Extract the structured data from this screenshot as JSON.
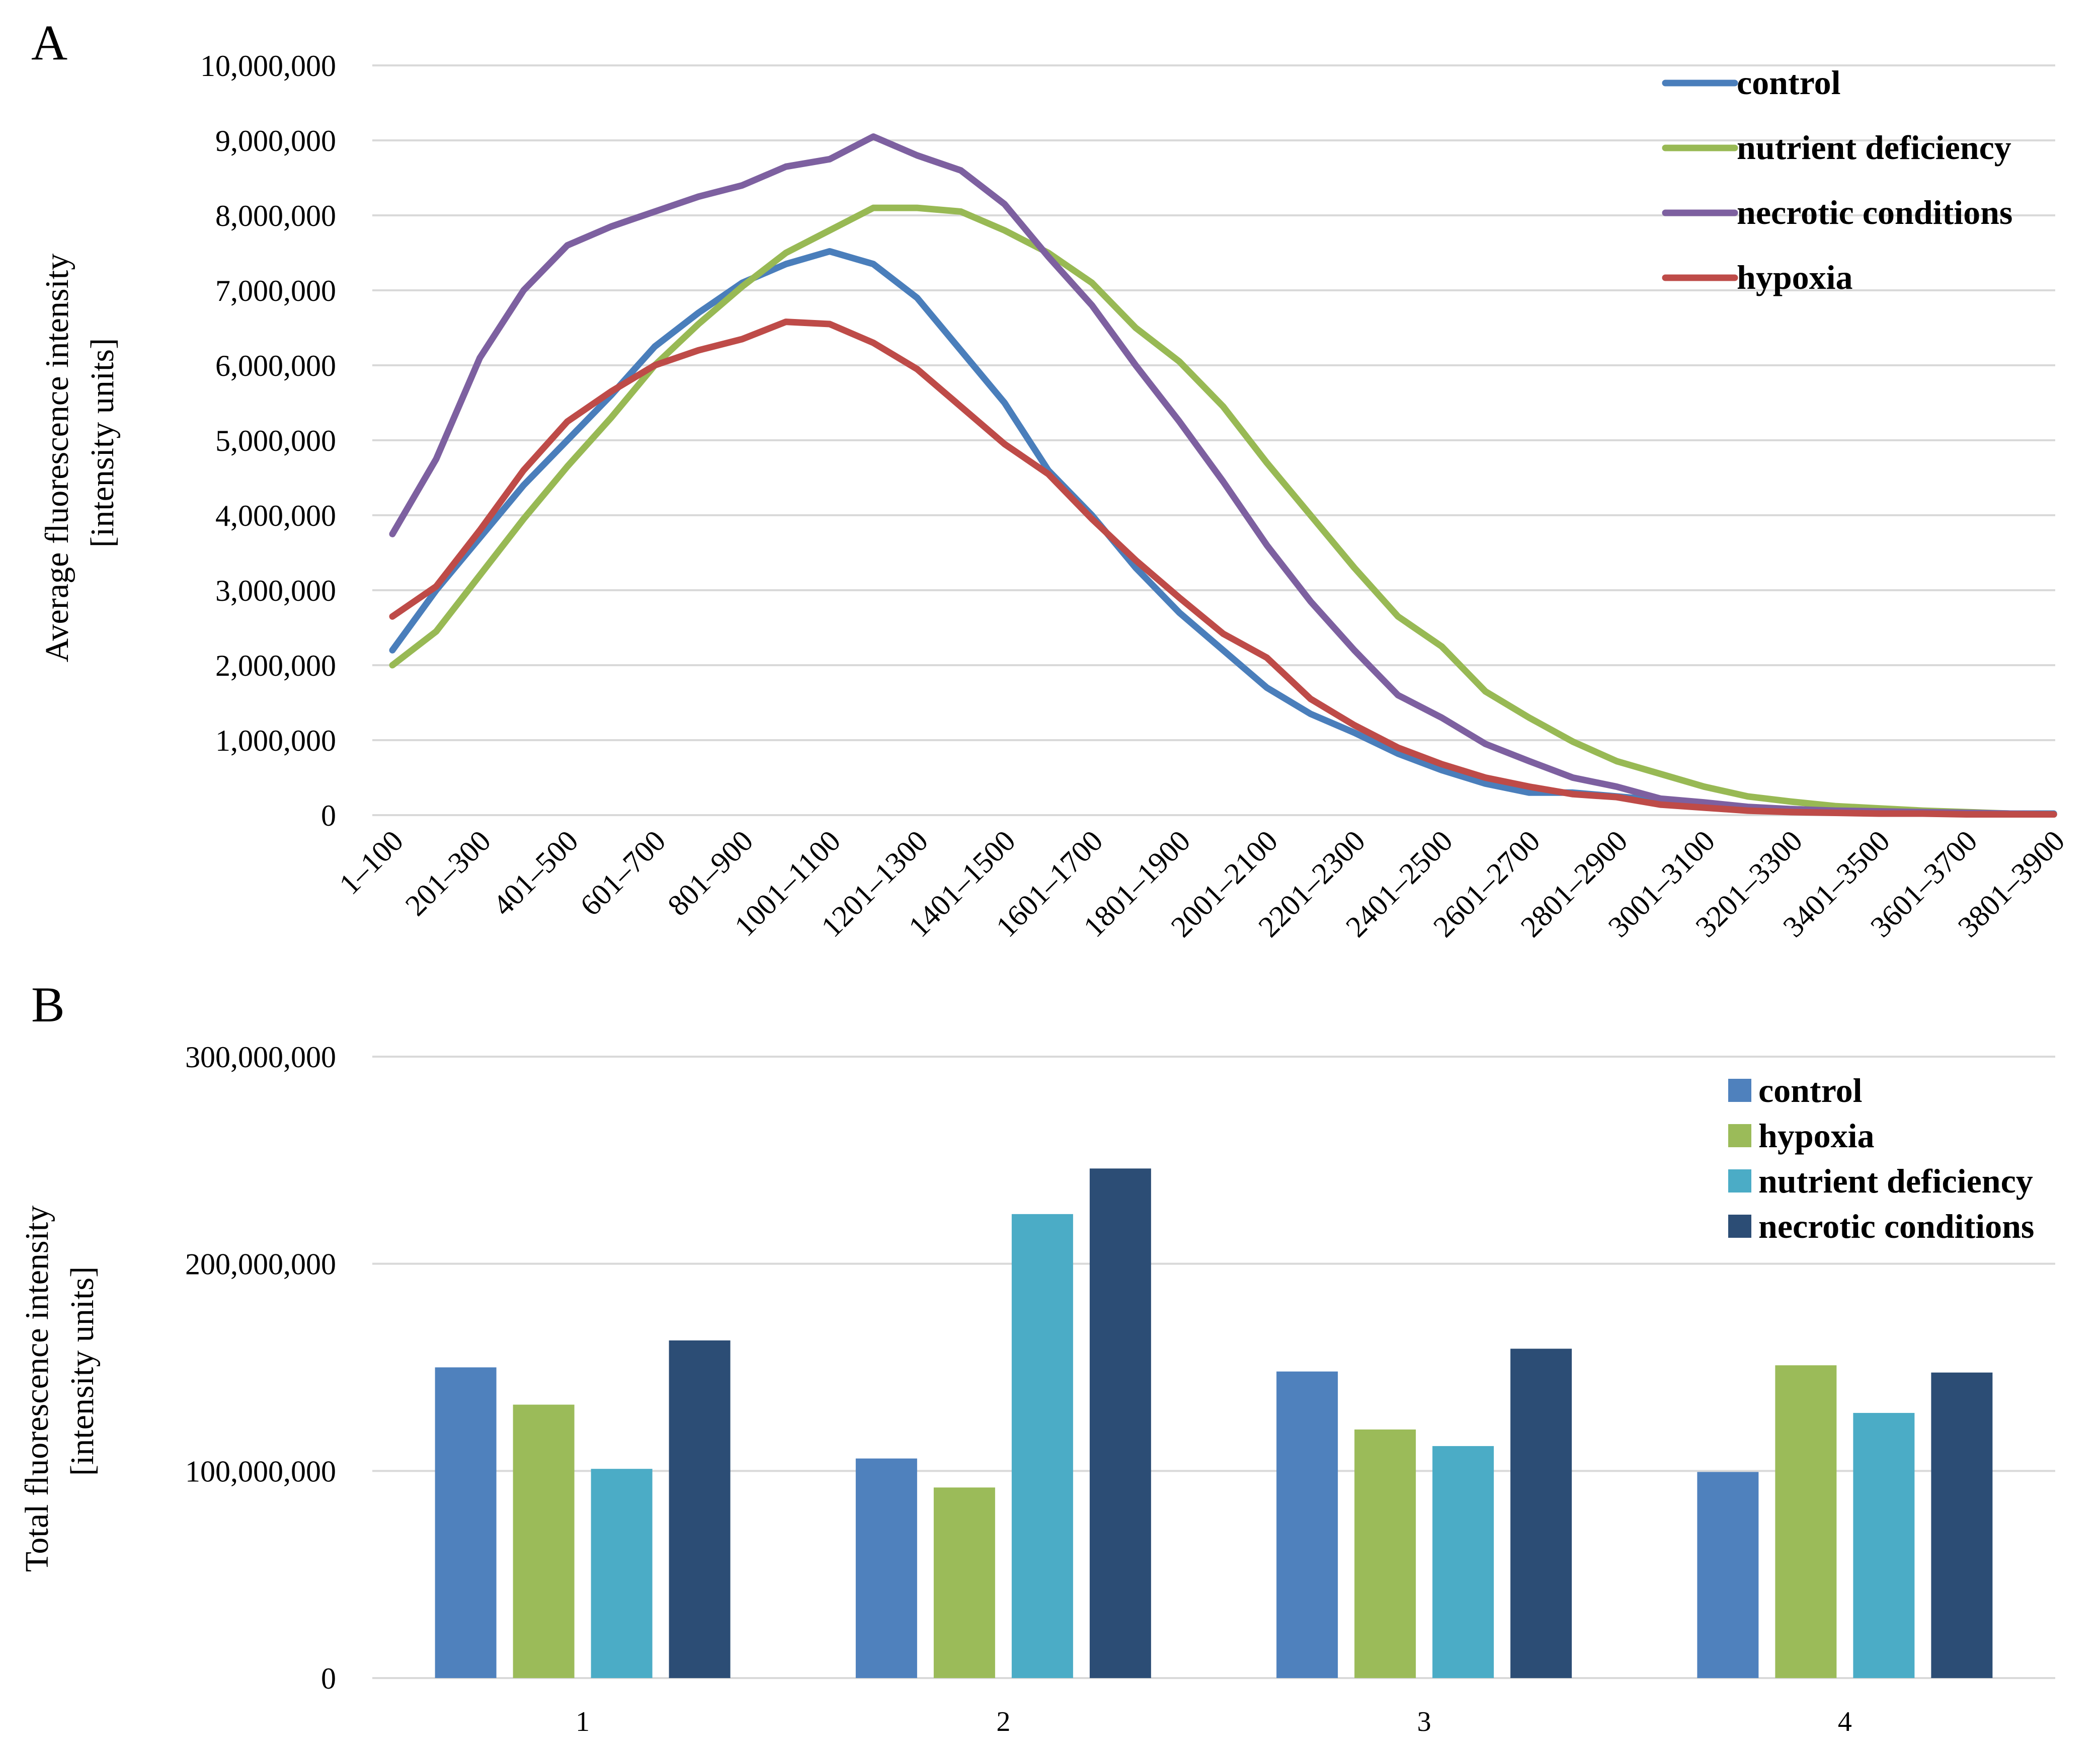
{
  "colors": {
    "line_control": "#4a7ebb",
    "line_nutrient": "#98b954",
    "line_necrotic": "#7d60a0",
    "line_hypoxia": "#be4b48",
    "bar_control": "#4f81bd",
    "bar_hypoxia": "#9bbb59",
    "bar_nutrient": "#4bacc6",
    "bar_necrotic": "#2c4d75"
  },
  "chart_data": [
    {
      "type": "line",
      "panel_label": "A",
      "ylabel_line1": "Average  fluorescence intensity",
      "ylabel_line2": "[intensity units]",
      "ylim": [
        0,
        10000000
      ],
      "grid": true,
      "legend_position": "top-right",
      "y_tick_values": [
        0,
        1000000,
        2000000,
        3000000,
        4000000,
        5000000,
        6000000,
        7000000,
        8000000,
        9000000,
        10000000
      ],
      "y_tick_labels": [
        "0",
        "1,000,000",
        "2,000,000",
        "3,000,000",
        "4,000,000",
        "5,000,000",
        "6,000,000",
        "7,000,000",
        "8,000,000",
        "9,000,000",
        "10,000,000"
      ],
      "x_tick_labels": [
        "1–100",
        "201–300",
        "401–500",
        "601–700",
        "801–900",
        "1001–1100",
        "1201–1300",
        "1401–1500",
        "1601–1700",
        "1801–1900",
        "2001–2100",
        "2201–2300",
        "2401–2500",
        "2601–2700",
        "2801–2900",
        "3001–3100",
        "3201–3300",
        "3401–3500",
        "3601–3700",
        "3801–3900"
      ],
      "num_points": 39,
      "series": [
        {
          "name": "control",
          "color_key": "line_control",
          "values": [
            2200000,
            3000000,
            3700000,
            4400000,
            5000000,
            5600000,
            6250000,
            6700000,
            7100000,
            7350000,
            7520000,
            7350000,
            6900000,
            6200000,
            5500000,
            4600000,
            4000000,
            3300000,
            2700000,
            2200000,
            1700000,
            1350000,
            1100000,
            820000,
            600000,
            420000,
            300000,
            300000,
            250000,
            200000,
            150000,
            100000,
            80000,
            60000,
            50000,
            40000,
            30000,
            20000,
            20000
          ]
        },
        {
          "name": "nutrient deficiency",
          "color_key": "line_nutrient",
          "values": [
            2000000,
            2450000,
            3200000,
            3950000,
            4650000,
            5300000,
            6000000,
            6550000,
            7050000,
            7500000,
            7800000,
            8100000,
            8100000,
            8050000,
            7800000,
            7500000,
            7100000,
            6500000,
            6050000,
            5450000,
            4700000,
            4000000,
            3300000,
            2650000,
            2250000,
            1650000,
            1300000,
            980000,
            720000,
            550000,
            380000,
            250000,
            180000,
            120000,
            90000,
            60000,
            40000,
            20000,
            10000
          ]
        },
        {
          "name": "necrotic conditions",
          "color_key": "line_necrotic",
          "values": [
            3750000,
            4750000,
            6100000,
            7000000,
            7600000,
            7850000,
            8050000,
            8250000,
            8400000,
            8650000,
            8750000,
            9050000,
            8800000,
            8600000,
            8150000,
            7450000,
            6800000,
            6000000,
            5250000,
            4450000,
            3600000,
            2850000,
            2200000,
            1600000,
            1300000,
            950000,
            720000,
            500000,
            380000,
            220000,
            170000,
            110000,
            80000,
            60000,
            50000,
            40000,
            30000,
            20000,
            10000
          ]
        },
        {
          "name": "hypoxia",
          "color_key": "line_hypoxia",
          "values": [
            2650000,
            3050000,
            3800000,
            4600000,
            5250000,
            5650000,
            6000000,
            6200000,
            6350000,
            6580000,
            6550000,
            6300000,
            5950000,
            5450000,
            4950000,
            4550000,
            3950000,
            3400000,
            2900000,
            2420000,
            2100000,
            1550000,
            1200000,
            900000,
            680000,
            500000,
            380000,
            280000,
            240000,
            140000,
            100000,
            60000,
            40000,
            30000,
            20000,
            20000,
            10000,
            10000,
            10000
          ]
        }
      ]
    },
    {
      "type": "bar",
      "panel_label": "B",
      "ylabel_line1": "Total fluorescence intensity",
      "ylabel_line2": "[intensity units]",
      "ylim": [
        0,
        300000000
      ],
      "grid": true,
      "legend_position": "top-right",
      "y_tick_values": [
        0,
        100000000,
        200000000,
        300000000
      ],
      "y_tick_labels": [
        "0",
        "100,000,000",
        "200,000,000",
        "300,000,000"
      ],
      "categories": [
        "1",
        "2",
        "3",
        "4"
      ],
      "series": [
        {
          "name": "control",
          "color_key": "bar_control",
          "values": [
            150000000,
            106000000,
            148000000,
            99500000
          ]
        },
        {
          "name": "hypoxia",
          "color_key": "bar_hypoxia",
          "values": [
            132000000,
            92000000,
            120000000,
            151000000
          ]
        },
        {
          "name": "nutrient deficiency",
          "color_key": "bar_nutrient",
          "values": [
            101000000,
            224000000,
            112000000,
            128000000
          ]
        },
        {
          "name": "necrotic conditions",
          "color_key": "bar_necrotic",
          "values": [
            163000000,
            246000000,
            159000000,
            147500000
          ]
        }
      ]
    }
  ]
}
